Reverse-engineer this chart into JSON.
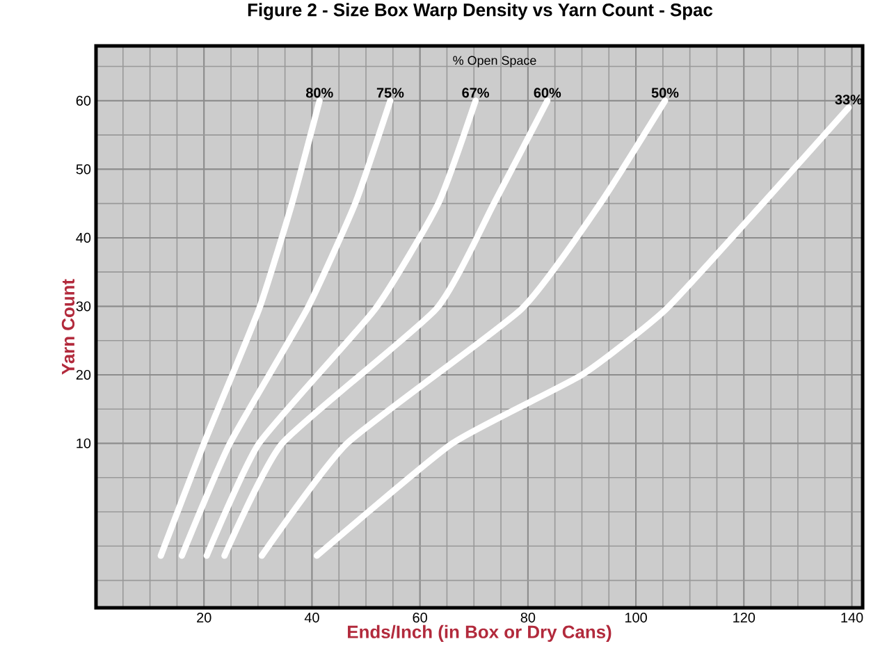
{
  "chart_data": {
    "type": "line",
    "title": "Figure 2 - Size Box Warp Density vs Yarn Count - Spac",
    "xlabel": "Ends/Inch (in Box or Dry Cans)",
    "ylabel": "Yarn Count",
    "legend_title": "% Open Space",
    "xlim": [
      0,
      142
    ],
    "ylim": [
      -14,
      68
    ],
    "xticks": [
      20,
      40,
      60,
      80,
      100,
      120,
      140
    ],
    "yticks": [
      10,
      20,
      30,
      40,
      50,
      60
    ],
    "grid": true,
    "marker": "none",
    "line_style": "solid",
    "series": [
      {
        "name": "80%",
        "color": "#ffffff",
        "x": [
          12,
          20,
          30.2,
          36.3,
          41.4
        ],
        "values": [
          -6.4,
          10,
          29.6,
          45,
          60
        ]
      },
      {
        "name": "75%",
        "color": "#ffffff",
        "x": [
          15.9,
          24.8,
          39.1,
          48,
          54.5
        ],
        "values": [
          -6.4,
          10,
          29.6,
          45,
          60
        ]
      },
      {
        "name": "67%",
        "color": "#ffffff",
        "x": [
          20.5,
          30.2,
          51.7,
          63.4,
          70.3
        ],
        "values": [
          -6.4,
          10,
          29.6,
          45,
          60
        ]
      },
      {
        "name": "60%",
        "color": "#ffffff",
        "x": [
          23.8,
          34.5,
          63,
          73.7,
          83.6
        ],
        "values": [
          -6.4,
          10,
          29.6,
          45,
          60
        ]
      },
      {
        "name": "50%",
        "color": "#ffffff",
        "x": [
          30.7,
          46.5,
          78.8,
          93.4,
          105.4
        ],
        "values": [
          -6.4,
          10,
          29.6,
          45,
          60
        ]
      },
      {
        "name": "33%",
        "color": "#ffffff",
        "x": [
          40.9,
          66,
          90,
          105.6,
          123.5,
          139.4
        ],
        "values": [
          -6.4,
          10,
          20,
          29.6,
          45,
          59
        ]
      }
    ]
  }
}
